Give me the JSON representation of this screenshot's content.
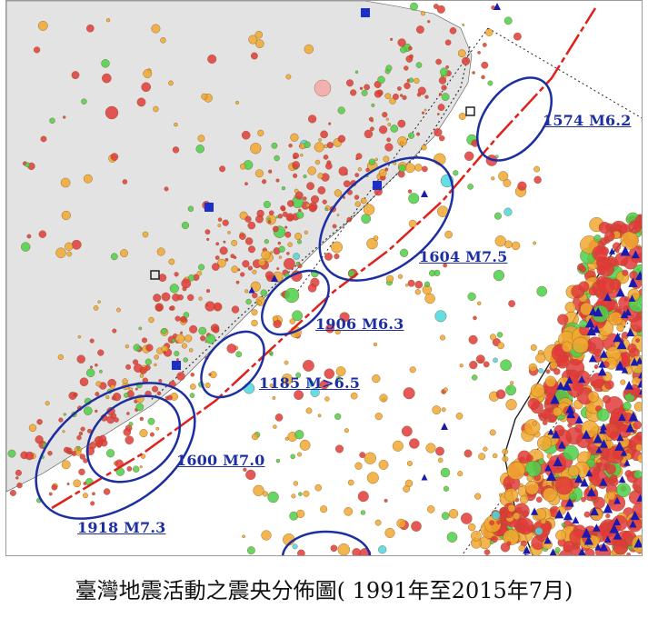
{
  "caption": "臺灣地震活動之震央分佈圖( 1991年至2015年7月)",
  "historical_events": [
    {
      "year": "1574",
      "magnitude": "M6.2",
      "label": "1574 M6.2"
    },
    {
      "year": "1604",
      "magnitude": "M7.5",
      "label": "1604 M7.5"
    },
    {
      "year": "1906",
      "magnitude": "M6.3",
      "label": "1906 M6.3"
    },
    {
      "year": "1185",
      "magnitude": "M>6.5",
      "label": "1185 M>6.5"
    },
    {
      "year": "1600",
      "magnitude": "M7.0",
      "label": "1600 M7.0"
    },
    {
      "year": "1918",
      "magnitude": "M7.3",
      "label": "1918 M7.3"
    }
  ],
  "colors": {
    "land_mainland": "#e3e3e3",
    "sea": "#ffffff",
    "fault_line": "#e0201c",
    "ellipse": "#1c2ea0",
    "label": "#1c2ea0",
    "epicenter_red": "#e23a3a",
    "epicenter_orange": "#f0a830",
    "epicenter_green": "#4ad04a",
    "epicenter_cyan": "#48d8e0",
    "triangle_blue": "#1a1ab0",
    "station_square": "#1c2ec8"
  },
  "icons": {
    "station": "blue-square-marker",
    "volcano": "blue-triangle-marker",
    "epicenter": "circle-marker"
  }
}
